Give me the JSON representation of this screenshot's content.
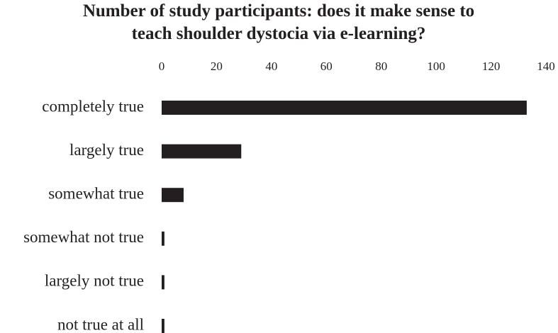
{
  "chart_data": {
    "type": "bar",
    "orientation": "horizontal",
    "title": "Number of study participants: does it make sense to teach shoulder dystocia via e-learning?",
    "categories": [
      "completely true",
      "largely true",
      "somewhat true",
      "somewhat not true",
      "largely not true",
      "not true at all"
    ],
    "values": [
      133,
      29,
      8,
      1,
      1,
      1
    ],
    "color": "#231f20",
    "xlim": [
      0,
      140
    ],
    "xticks": [
      0,
      20,
      40,
      60,
      80,
      100,
      120,
      140
    ],
    "grid": false
  }
}
